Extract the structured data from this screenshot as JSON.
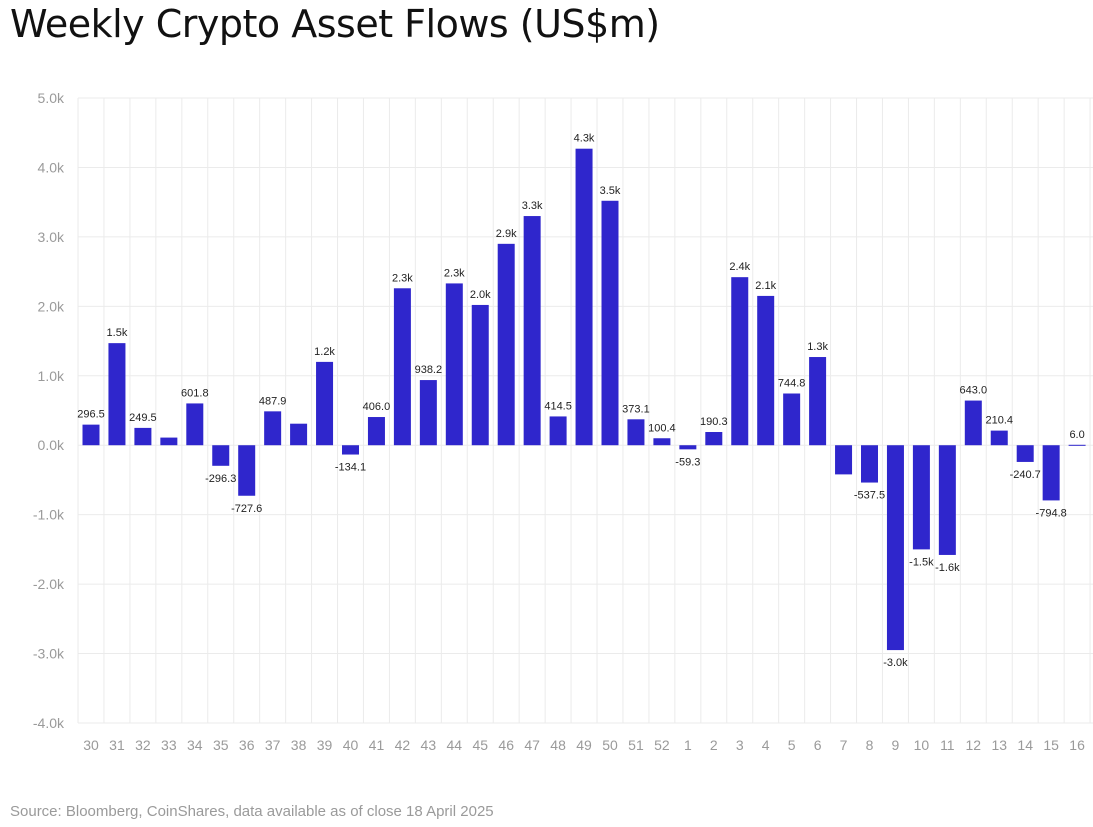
{
  "chart_data": {
    "type": "bar",
    "title": "Weekly Crypto Asset Flows (US$m)",
    "source": "Source: Bloomberg, CoinShares, data available as of close 18 April 2025",
    "xlabel": "",
    "ylabel": "",
    "ylim": [
      -4000,
      5000
    ],
    "yticks": [
      5000,
      4000,
      3000,
      2000,
      1000,
      0,
      -1000,
      -2000,
      -3000,
      -4000
    ],
    "ytick_labels": [
      "5.0k",
      "4.0k",
      "3.0k",
      "2.0k",
      "1.0k",
      "0.0k",
      "-1.0k",
      "-2.0k",
      "-3.0k",
      "-4.0k"
    ],
    "categories": [
      "30",
      "31",
      "32",
      "33",
      "34",
      "35",
      "36",
      "37",
      "38",
      "39",
      "40",
      "41",
      "42",
      "43",
      "44",
      "45",
      "46",
      "47",
      "48",
      "49",
      "50",
      "51",
      "52",
      "1",
      "2",
      "3",
      "4",
      "5",
      "6",
      "7",
      "8",
      "9",
      "10",
      "11",
      "12",
      "13",
      "14",
      "15",
      "16"
    ],
    "values": [
      296.5,
      1470,
      249.5,
      110,
      601.8,
      -296.3,
      -727.6,
      487.9,
      310,
      1200,
      -134.1,
      406.0,
      2260,
      938.2,
      2330,
      2020,
      2900,
      3300,
      414.5,
      4270,
      3520,
      373.1,
      100.4,
      -59.3,
      190.3,
      2420,
      2150,
      744.8,
      1270,
      -420,
      -537.5,
      -2950,
      -1500,
      -1580,
      643.0,
      210.4,
      -240.7,
      -794.8,
      6.0
    ],
    "data_labels": [
      "296.5",
      "1.5k",
      "249.5",
      "",
      "601.8",
      "-296.3",
      "-727.6",
      "487.9",
      "",
      "1.2k",
      "-134.1",
      "406.0",
      "2.3k",
      "938.2",
      "2.3k",
      "2.0k",
      "2.9k",
      "3.3k",
      "414.5",
      "4.3k",
      "3.5k",
      "373.1",
      "100.4",
      "-59.3",
      "190.3",
      "2.4k",
      "2.1k",
      "744.8",
      "1.3k",
      "",
      "-537.5",
      "-3.0k",
      "-1.5k",
      "-1.6k",
      "643.0",
      "210.4",
      "-240.7",
      "-794.8",
      "6.0"
    ],
    "grid": true,
    "colors": {
      "bar": "#2f26cc",
      "grid": "#ebebeb",
      "tick": "#9a9a9a",
      "label": "#222222"
    }
  }
}
